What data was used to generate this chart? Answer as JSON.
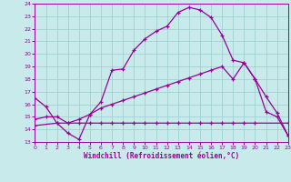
{
  "xlabel": "Windchill (Refroidissement éolien,°C)",
  "background_color": "#c8eaea",
  "line_color": "#990099",
  "grid_color": "#99cccc",
  "ylim": [
    13,
    24
  ],
  "xlim": [
    0,
    23
  ],
  "yticks": [
    13,
    14,
    15,
    16,
    17,
    18,
    19,
    20,
    21,
    22,
    23,
    24
  ],
  "xticks": [
    0,
    1,
    2,
    3,
    4,
    5,
    6,
    7,
    8,
    9,
    10,
    11,
    12,
    13,
    14,
    15,
    16,
    17,
    18,
    19,
    20,
    21,
    22,
    23
  ],
  "line1_x": [
    0,
    1,
    2,
    3,
    4,
    5,
    6,
    7,
    8,
    9,
    10,
    11,
    12,
    13,
    14,
    15,
    16,
    17,
    18,
    19,
    20,
    21,
    22,
    23
  ],
  "line1_y": [
    16.5,
    15.8,
    14.5,
    13.7,
    13.2,
    15.2,
    16.2,
    18.7,
    18.8,
    20.3,
    21.2,
    21.8,
    22.2,
    23.3,
    23.7,
    23.5,
    22.9,
    21.5,
    19.5,
    19.3,
    18.0,
    15.4,
    15.0,
    13.5
  ],
  "line2_x": [
    0,
    2,
    3,
    4,
    5,
    6,
    7,
    8,
    9,
    10,
    11,
    12,
    13,
    14,
    15,
    16,
    17,
    18,
    19,
    20,
    23
  ],
  "line2_y": [
    14.3,
    14.5,
    14.5,
    14.5,
    14.5,
    14.5,
    14.5,
    14.5,
    14.5,
    14.5,
    14.5,
    14.5,
    14.5,
    14.5,
    14.5,
    14.5,
    14.5,
    14.5,
    14.5,
    14.5,
    14.5
  ],
  "line3_x": [
    0,
    1,
    2,
    3,
    4,
    5,
    6,
    7,
    8,
    9,
    10,
    11,
    12,
    13,
    14,
    15,
    16,
    17,
    18,
    19,
    20,
    21,
    22,
    23
  ],
  "line3_y": [
    14.8,
    15.0,
    15.0,
    14.5,
    14.8,
    15.2,
    15.7,
    16.0,
    16.3,
    16.6,
    16.9,
    17.2,
    17.5,
    17.8,
    18.1,
    18.4,
    18.7,
    19.0,
    18.0,
    19.3,
    18.0,
    16.6,
    15.3,
    13.5
  ]
}
